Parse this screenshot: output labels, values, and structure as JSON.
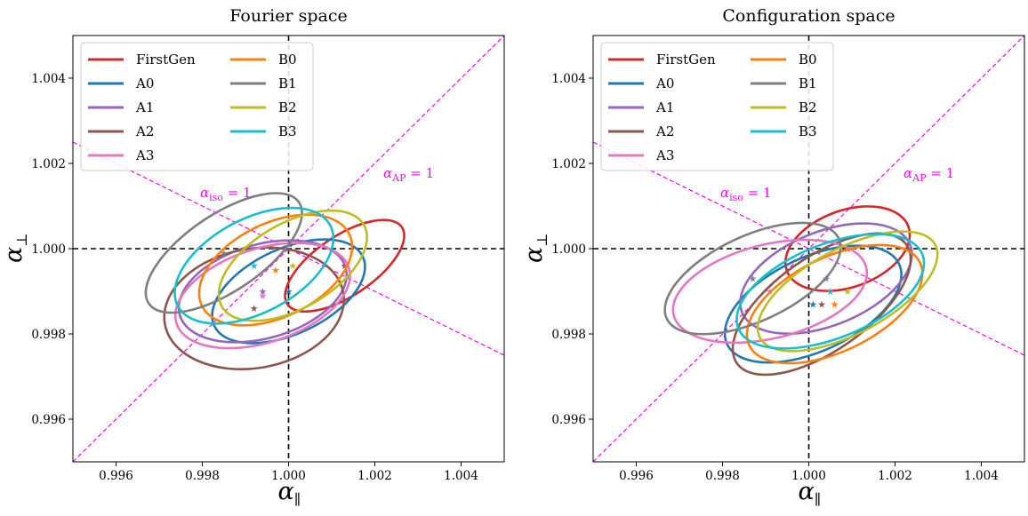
{
  "chart_data": [
    {
      "type": "scatter",
      "title": "Fourier space",
      "xlabel": "α",
      "xlabel_sub": "∥",
      "ylabel": "α",
      "ylabel_sub": "⊥",
      "xlim": [
        0.995,
        1.005
      ],
      "ylim": [
        0.995,
        1.005
      ],
      "xticks": [
        "0.996",
        "0.998",
        "1.000",
        "1.002",
        "1.004"
      ],
      "yticks": [
        "0.996",
        "0.998",
        "1.000",
        "1.002",
        "1.004"
      ],
      "grid": false,
      "legend_position": "top-left",
      "reference_lines": {
        "vertical_x": 1.0,
        "horizontal_y": 1.0,
        "iso_label": "α",
        "iso_sub": "iso",
        "iso_rest": " = 1",
        "ap_label": "α",
        "ap_sub": "AP",
        "ap_rest": " = 1"
      },
      "series": [
        {
          "name": "FirstGen",
          "color": "#d62728",
          "center": [
            1.0013,
            0.9996
          ],
          "rx": 0.0016,
          "ry": 0.0007,
          "angle_deg": -34
        },
        {
          "name": "A0",
          "color": "#1f77b4",
          "center": [
            1.0,
            0.999
          ],
          "rx": 0.0019,
          "ry": 0.001,
          "angle_deg": -25
        },
        {
          "name": "A1",
          "color": "#9467bd",
          "center": [
            0.9994,
            0.999
          ],
          "rx": 0.002,
          "ry": 0.0011,
          "angle_deg": -16
        },
        {
          "name": "A2",
          "color": "#8c564b",
          "center": [
            0.9992,
            0.9986
          ],
          "rx": 0.0021,
          "ry": 0.0014,
          "angle_deg": -10
        },
        {
          "name": "A3",
          "color": "#e377c2",
          "center": [
            0.9994,
            0.9989
          ],
          "rx": 0.0021,
          "ry": 0.0011,
          "angle_deg": -18
        },
        {
          "name": "B0",
          "color": "#ff7f0e",
          "center": [
            0.9997,
            0.9995
          ],
          "rx": 0.0019,
          "ry": 0.0011,
          "angle_deg": -26
        },
        {
          "name": "B1",
          "color": "#7f7f7f",
          "center": [
            0.9985,
            0.9999
          ],
          "rx": 0.0021,
          "ry": 0.0009,
          "angle_deg": -34
        },
        {
          "name": "B2",
          "color": "#bcbd22",
          "center": [
            1.0001,
            0.9996
          ],
          "rx": 0.0019,
          "ry": 0.001,
          "angle_deg": -30
        },
        {
          "name": "B3",
          "color": "#17becf",
          "center": [
            0.9992,
            0.9996
          ],
          "rx": 0.002,
          "ry": 0.0011,
          "angle_deg": -28
        }
      ]
    },
    {
      "type": "scatter",
      "title": "Configuration space",
      "xlabel": "α",
      "xlabel_sub": "∥",
      "ylabel": "α",
      "ylabel_sub": "⊥",
      "xlim": [
        0.995,
        1.005
      ],
      "ylim": [
        0.995,
        1.005
      ],
      "xticks": [
        "0.996",
        "0.998",
        "1.000",
        "1.002",
        "1.004"
      ],
      "yticks": [
        "0.996",
        "0.998",
        "1.000",
        "1.002",
        "1.004"
      ],
      "grid": false,
      "legend_position": "top-left",
      "reference_lines": {
        "vertical_x": 1.0,
        "horizontal_y": 1.0,
        "iso_label": "α",
        "iso_sub": "iso",
        "iso_rest": " = 1",
        "ap_label": "α",
        "ap_sub": "AP",
        "ap_rest": " = 1"
      },
      "series": [
        {
          "name": "FirstGen",
          "color": "#d62728",
          "center": [
            1.0009,
            1.0
          ],
          "rx": 0.0015,
          "ry": 0.0009,
          "angle_deg": -20
        },
        {
          "name": "A0",
          "color": "#1f77b4",
          "center": [
            1.0001,
            0.9987
          ],
          "rx": 0.0022,
          "ry": 0.0011,
          "angle_deg": -25
        },
        {
          "name": "A1",
          "color": "#9467bd",
          "center": [
            1.0004,
            0.9993
          ],
          "rx": 0.0021,
          "ry": 0.0011,
          "angle_deg": -22
        },
        {
          "name": "A2",
          "color": "#8c564b",
          "center": [
            1.0003,
            0.9987
          ],
          "rx": 0.0024,
          "ry": 0.0011,
          "angle_deg": -35
        },
        {
          "name": "A3",
          "color": "#e377c2",
          "center": [
            0.9991,
            0.999
          ],
          "rx": 0.0023,
          "ry": 0.0011,
          "angle_deg": -14
        },
        {
          "name": "B0",
          "color": "#ff7f0e",
          "center": [
            1.0006,
            0.9987
          ],
          "rx": 0.0022,
          "ry": 0.0011,
          "angle_deg": -26
        },
        {
          "name": "B1",
          "color": "#7f7f7f",
          "center": [
            0.9987,
            0.9993
          ],
          "rx": 0.0022,
          "ry": 0.001,
          "angle_deg": -25
        },
        {
          "name": "B2",
          "color": "#bcbd22",
          "center": [
            1.0009,
            0.999
          ],
          "rx": 0.0023,
          "ry": 0.001,
          "angle_deg": -28
        },
        {
          "name": "B3",
          "color": "#17becf",
          "center": [
            1.0005,
            0.999
          ],
          "rx": 0.0023,
          "ry": 0.0011,
          "angle_deg": -22
        }
      ]
    }
  ]
}
